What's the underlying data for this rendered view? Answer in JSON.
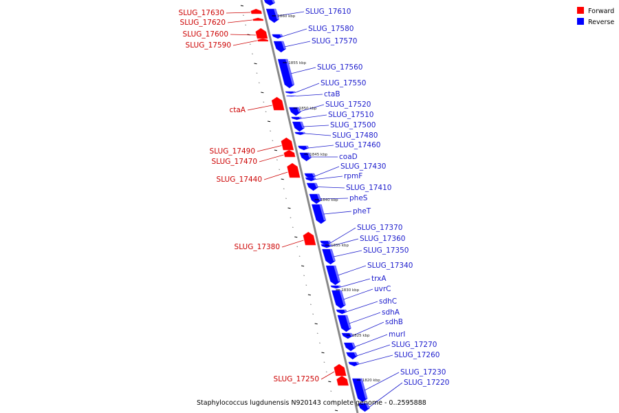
{
  "caption": "Staphylococcus lugdunensis N920143 complete genome - 0..2595888",
  "legend": [
    {
      "label": "Forward",
      "color": "#ff0000"
    },
    {
      "label": "Reverse",
      "color": "#0000ff"
    }
  ],
  "scale_labels": [
    "1860 kbp",
    "1855 kbp",
    "1850 kbp",
    "1845 kbp",
    "1840 kbp",
    "1835 kbp",
    "1830 kbp",
    "1825 kbp",
    "1820 kbp"
  ],
  "forward_genes": [
    "SLUG_17630",
    "SLUG_17620",
    "SLUG_17600",
    "SLUG_17590",
    "ctaA",
    "SLUG_17490",
    "SLUG_17470",
    "SLUG_17440",
    "SLUG_17380",
    "SLUG_17250"
  ],
  "reverse_genes": [
    "SLUG_17610",
    "SLUG_17580",
    "SLUG_17570",
    "SLUG_17560",
    "SLUG_17550",
    "ctaB",
    "SLUG_17520",
    "SLUG_17510",
    "SLUG_17500",
    "SLUG_17480",
    "SLUG_17460",
    "coaD",
    "SLUG_17430",
    "rpmF",
    "SLUG_17410",
    "pheS",
    "pheT",
    "SLUG_17370",
    "SLUG_17360",
    "SLUG_17350",
    "SLUG_17340",
    "trxA",
    "uvrC",
    "sdhC",
    "sdhA",
    "sdhB",
    "murI",
    "SLUG_17270",
    "SLUG_17260",
    "SLUG_17230",
    "SLUG_17220"
  ],
  "colors": {
    "forward": "#ff0000",
    "reverse": "#0000ff",
    "forward_label": "#cc0000",
    "reverse_label": "#1a1acc",
    "backbone": "#888888"
  }
}
